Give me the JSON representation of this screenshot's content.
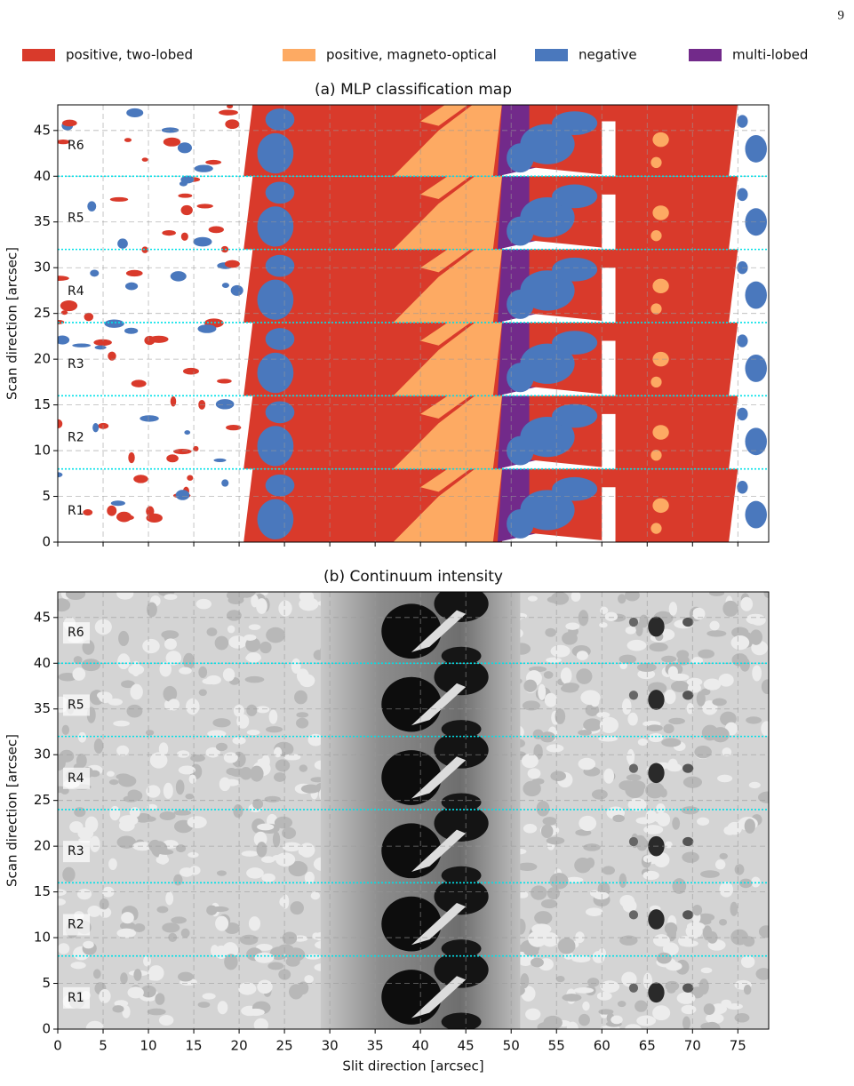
{
  "page_number": "9",
  "chart_data": [
    {
      "type": "image",
      "title": "(a) MLP classification map",
      "ylabel": "Scan direction [arcsec]",
      "xlim": [
        0,
        78.4
      ],
      "ylim": [
        0,
        47.8
      ],
      "xticks": [
        0,
        5,
        10,
        15,
        20,
        25,
        30,
        35,
        40,
        45,
        50,
        55,
        60,
        65,
        70,
        75
      ],
      "yticks": [
        0,
        5,
        10,
        15,
        20,
        25,
        30,
        35,
        40,
        45
      ],
      "grid": true,
      "legend": [
        {
          "name": "positive, two-lobed",
          "color": "#d93a2b"
        },
        {
          "name": "positive, magneto-optical",
          "color": "#fdaa63"
        },
        {
          "name": "negative",
          "color": "#4a78bd"
        },
        {
          "name": "multi-lobed",
          "color": "#722a8a"
        }
      ],
      "legend_position": "top",
      "region_lines": [
        8,
        16,
        24,
        32,
        40
      ],
      "region_line_color": "#00e0e8",
      "region_labels": [
        "R1",
        "R2",
        "R3",
        "R4",
        "R5",
        "R6"
      ]
    },
    {
      "type": "image",
      "title": "(b) Continuum intensity",
      "xlabel": "Slit direction [arcsec]",
      "ylabel": "Scan direction [arcsec]",
      "xlim": [
        0,
        78.4
      ],
      "ylim": [
        0,
        47.8
      ],
      "xticks": [
        0,
        5,
        10,
        15,
        20,
        25,
        30,
        35,
        40,
        45,
        50,
        55,
        60,
        65,
        70,
        75
      ],
      "yticks": [
        0,
        5,
        10,
        15,
        20,
        25,
        30,
        35,
        40,
        45
      ],
      "grid": true,
      "colormap": "gray",
      "region_lines": [
        8,
        16,
        24,
        32,
        40
      ],
      "region_line_color": "#00e0e8",
      "region_labels": [
        "R1",
        "R2",
        "R3",
        "R4",
        "R5",
        "R6"
      ]
    }
  ]
}
